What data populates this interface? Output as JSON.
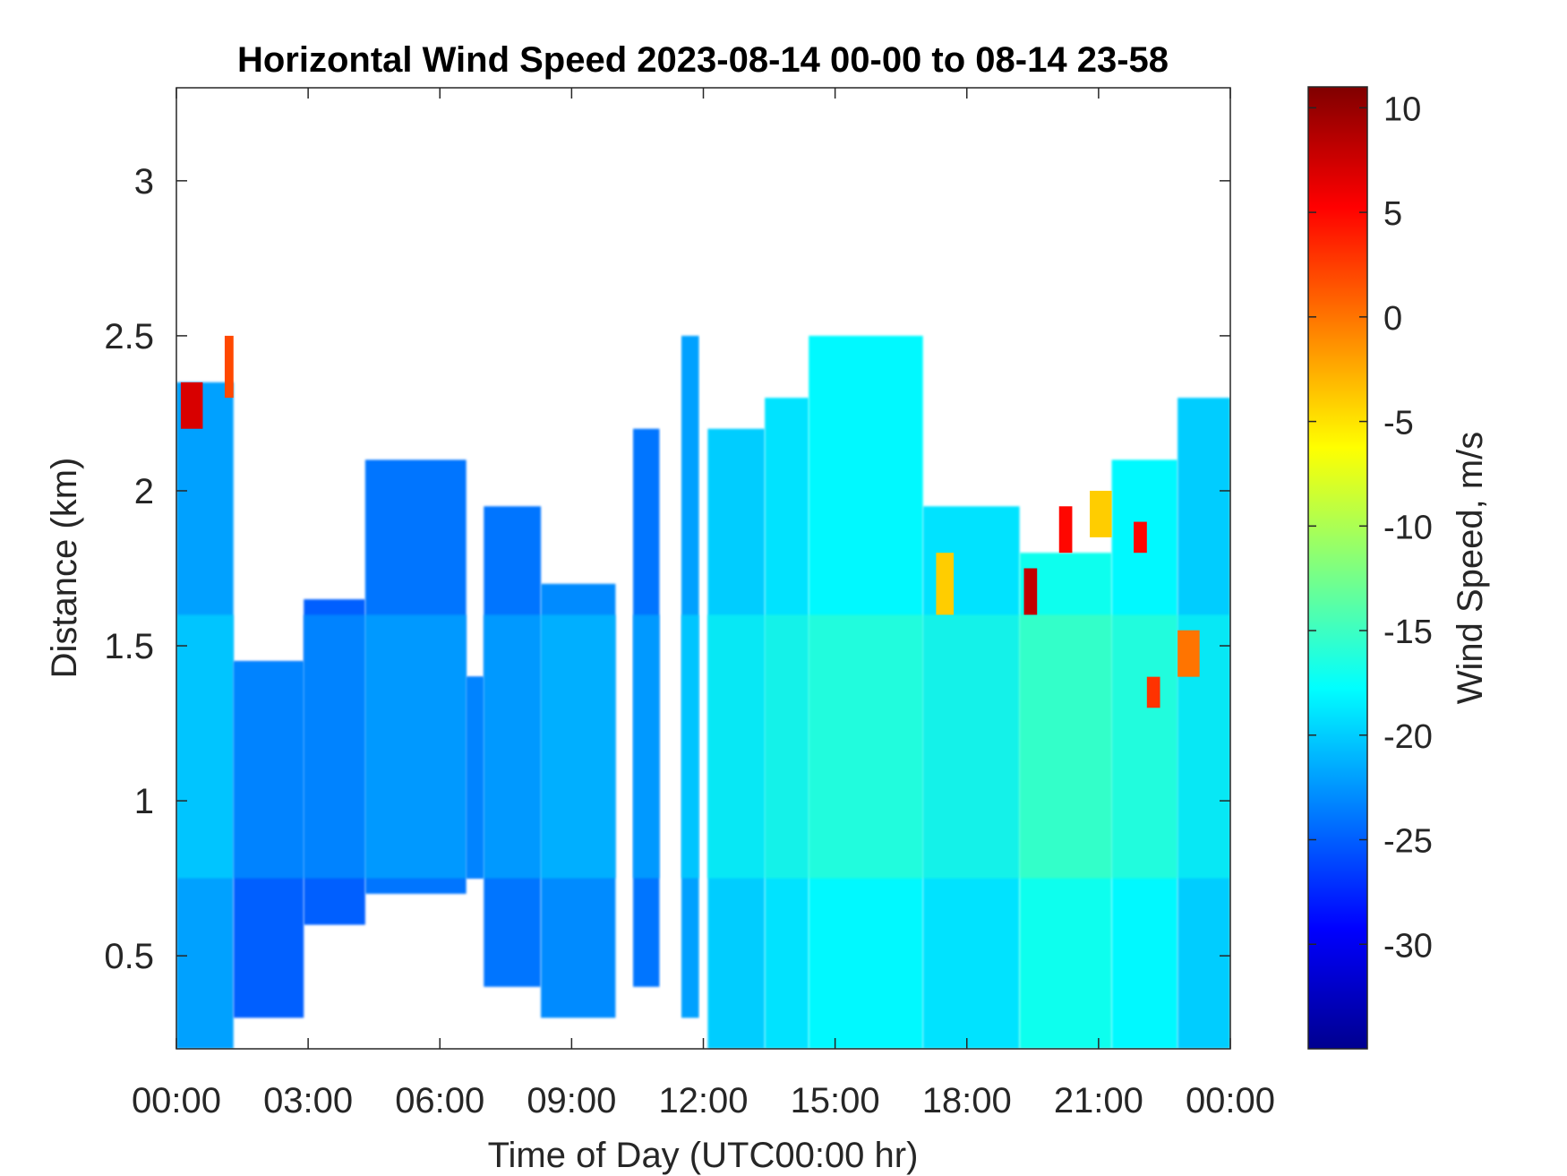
{
  "chart_data": {
    "type": "heatmap",
    "title": "Horizontal Wind Speed 2023-08-14 00-00 to 08-14 23-58",
    "xlabel": "Time of Day (UTC00:00 hr)",
    "ylabel": "Distance (km)",
    "colorbar_label": "Wind Speed, m/s",
    "xlim_hours": [
      0,
      24
    ],
    "ylim_km": [
      0.2,
      3.3
    ],
    "clim_ms": [
      -35,
      11
    ],
    "colormap": "jet",
    "x_ticks": [
      {
        "hour": 0,
        "label": "00:00"
      },
      {
        "hour": 3,
        "label": "03:00"
      },
      {
        "hour": 6,
        "label": "06:00"
      },
      {
        "hour": 9,
        "label": "09:00"
      },
      {
        "hour": 12,
        "label": "12:00"
      },
      {
        "hour": 15,
        "label": "15:00"
      },
      {
        "hour": 18,
        "label": "18:00"
      },
      {
        "hour": 21,
        "label": "21:00"
      },
      {
        "hour": 24,
        "label": "00:00"
      }
    ],
    "y_ticks": [
      {
        "km": 0.5,
        "label": "0.5"
      },
      {
        "km": 1.0,
        "label": "1"
      },
      {
        "km": 1.5,
        "label": "1.5"
      },
      {
        "km": 2.0,
        "label": "2"
      },
      {
        "km": 2.5,
        "label": "2.5"
      },
      {
        "km": 3.0,
        "label": "3"
      }
    ],
    "colorbar_ticks": [
      {
        "value": 10,
        "label": "10"
      },
      {
        "value": 5,
        "label": "5"
      },
      {
        "value": 0,
        "label": "0"
      },
      {
        "value": -5,
        "label": "-5"
      },
      {
        "value": -10,
        "label": "-10"
      },
      {
        "value": -15,
        "label": "-15"
      },
      {
        "value": -20,
        "label": "-20"
      },
      {
        "value": -25,
        "label": "-25"
      },
      {
        "value": -30,
        "label": "-30"
      }
    ],
    "coverage": [
      {
        "t0": 0.0,
        "t1": 1.3,
        "z0": 0.2,
        "z1": 2.35,
        "wind_ms": -22
      },
      {
        "t0": 1.3,
        "t1": 2.9,
        "z0": 0.3,
        "z1": 1.45,
        "wind_ms": -25
      },
      {
        "t0": 2.9,
        "t1": 4.3,
        "z0": 0.6,
        "z1": 1.65,
        "wind_ms": -25
      },
      {
        "t0": 4.3,
        "t1": 6.6,
        "z0": 0.7,
        "z1": 2.1,
        "wind_ms": -24
      },
      {
        "t0": 6.6,
        "t1": 7.0,
        "z0": 0.75,
        "z1": 1.4,
        "wind_ms": -25
      },
      {
        "t0": 7.0,
        "t1": 8.3,
        "z0": 0.4,
        "z1": 1.95,
        "wind_ms": -24
      },
      {
        "t0": 8.3,
        "t1": 10.0,
        "z0": 0.3,
        "z1": 1.7,
        "wind_ms": -23
      },
      {
        "t0": 10.4,
        "t1": 11.0,
        "z0": 0.4,
        "z1": 2.2,
        "wind_ms": -24
      },
      {
        "t0": 11.5,
        "t1": 11.9,
        "z0": 0.3,
        "z1": 2.5,
        "wind_ms": -22
      },
      {
        "t0": 12.1,
        "t1": 13.4,
        "z0": 0.2,
        "z1": 2.2,
        "wind_ms": -20
      },
      {
        "t0": 13.4,
        "t1": 14.4,
        "z0": 0.2,
        "z1": 2.3,
        "wind_ms": -19
      },
      {
        "t0": 14.4,
        "t1": 17.0,
        "z0": 0.2,
        "z1": 2.5,
        "wind_ms": -18
      },
      {
        "t0": 17.0,
        "t1": 19.2,
        "z0": 0.2,
        "z1": 1.95,
        "wind_ms": -19
      },
      {
        "t0": 19.2,
        "t1": 21.3,
        "z0": 0.2,
        "z1": 1.8,
        "wind_ms": -17
      },
      {
        "t0": 21.3,
        "t1": 22.8,
        "z0": 0.2,
        "z1": 2.1,
        "wind_ms": -18
      },
      {
        "t0": 22.8,
        "t1": 24.0,
        "z0": 0.2,
        "z1": 2.3,
        "wind_ms": -20
      }
    ],
    "patches": [
      {
        "t0": 0.1,
        "t1": 0.6,
        "z0": 2.2,
        "z1": 2.35,
        "wind_ms": 7
      },
      {
        "t0": 1.1,
        "t1": 1.3,
        "z0": 2.3,
        "z1": 2.5,
        "wind_ms": 2
      },
      {
        "t0": 19.3,
        "t1": 19.6,
        "z0": 1.6,
        "z1": 1.75,
        "wind_ms": 8
      },
      {
        "t0": 20.1,
        "t1": 20.4,
        "z0": 1.8,
        "z1": 1.95,
        "wind_ms": 5
      },
      {
        "t0": 21.8,
        "t1": 22.1,
        "z0": 1.8,
        "z1": 1.9,
        "wind_ms": 5
      },
      {
        "t0": 22.1,
        "t1": 22.4,
        "z0": 1.3,
        "z1": 1.4,
        "wind_ms": 3
      },
      {
        "t0": 22.8,
        "t1": 23.3,
        "z0": 1.4,
        "z1": 1.55,
        "wind_ms": 0
      },
      {
        "t0": 17.3,
        "t1": 17.7,
        "z0": 1.6,
        "z1": 1.8,
        "wind_ms": -4
      },
      {
        "t0": 20.8,
        "t1": 21.3,
        "z0": 1.85,
        "z1": 2.0,
        "wind_ms": -4
      }
    ]
  }
}
